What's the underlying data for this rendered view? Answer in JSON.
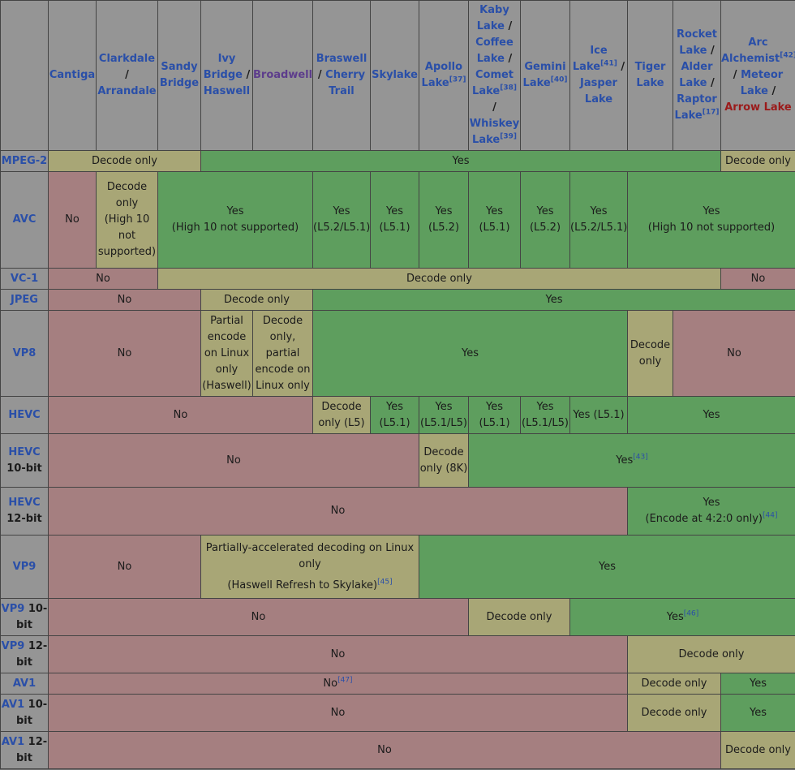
{
  "header": {
    "cantiga": "Cantiga",
    "clarkdale_a": "Clarkdale",
    "clarkdale_slash": "/",
    "clarkdale_b": "Arrandale",
    "sandy": "Sandy Bridge",
    "ivy_a": "Ivy Bridge",
    "ivy_slash": " / ",
    "ivy_b": "Haswell",
    "broadwell": "Broadwell",
    "braswell_a": "Braswell",
    "braswell_slash": " / ",
    "braswell_b": "Cherry Trail",
    "skylake": "Skylake",
    "apollo": "Apollo Lake",
    "apollo_ref": "[37]",
    "kaby_a": "Kaby Lake",
    "kaby_s1": " / ",
    "kaby_b": "Coffee Lake",
    "kaby_s2": " / ",
    "kaby_c": "Comet Lake",
    "kaby_ref": "[38]",
    "kaby_s3": " / ",
    "kaby_d": "Whiskey Lake",
    "kaby_ref2": "[39]",
    "gemini": "Gemini Lake",
    "gemini_ref": "[40]",
    "ice_a": "Ice Lake",
    "ice_ref": "[41]",
    "ice_slash": " / ",
    "ice_b": "Jasper Lake",
    "tiger": "Tiger Lake",
    "rocket_a": "Rocket Lake",
    "rocket_s1": " / ",
    "rocket_b": "Alder Lake",
    "rocket_s2": " / ",
    "rocket_c": "Raptor Lake",
    "rocket_ref": "[17]",
    "arc_a": "Arc Alchemist",
    "arc_ref": "[42]",
    "arc_s1": " / ",
    "arc_b": "Meteor Lake",
    "arc_s2": " / ",
    "arc_c": "Arrow Lake"
  },
  "rows": {
    "mpeg2": {
      "label": "MPEG-2",
      "c1": "Decode only",
      "c2": "Yes",
      "c3": "Decode only"
    },
    "avc": {
      "label": "AVC",
      "c1": "No",
      "c2a": "Decode only",
      "c2b": "(High 10 not supported)",
      "c3a": "Yes",
      "c3b": "(High 10 not supported)",
      "c4a": "Yes",
      "c4b": "(L5.2/L5.1)",
      "c5a": "Yes",
      "c5b": "(L5.1)",
      "c6a": "Yes",
      "c6b": "(L5.2)",
      "c7a": "Yes",
      "c7b": "(L5.1)",
      "c8a": "Yes",
      "c8b": "(L5.2)",
      "c9a": "Yes",
      "c9b": "(L5.2/L5.1)",
      "c10a": "Yes",
      "c10b": "(High 10 not supported)"
    },
    "vc1": {
      "label": "VC-1",
      "c1": "No",
      "c2": "Decode only",
      "c3": "No"
    },
    "jpeg": {
      "label": "JPEG",
      "c1": "No",
      "c2": "Decode only",
      "c3": "Yes"
    },
    "vp8": {
      "label": "VP8",
      "c1": "No",
      "c2": "Partial encode on Linux only (Haswell)",
      "c3": "Decode only, partial encode on Linux only",
      "c4": "Yes",
      "c5": "Decode only",
      "c6": "No"
    },
    "hevc": {
      "label": "HEVC",
      "c1": "No",
      "c2": "Decode only (L5)",
      "c3": "Yes (L5.1)",
      "c4": "Yes (L5.1/L5)",
      "c5": "Yes (L5.1)",
      "c6": "Yes (L5.1/L5)",
      "c7": "Yes (L5.1)",
      "c8": "Yes"
    },
    "hevc10": {
      "label_a": "HEVC",
      "label_b": "10-bit",
      "c1": "No",
      "c2": "Decode only (8K)",
      "c3": "Yes",
      "c3_ref": "[43]"
    },
    "hevc12": {
      "label_a": "HEVC",
      "label_b": "12-bit",
      "c1": "No",
      "c2a": "Yes",
      "c2b": "(Encode at 4:2:0 only)",
      "c2_ref": "[44]"
    },
    "vp9": {
      "label": "VP9",
      "c1": "No",
      "c2a": "Partially-accelerated decoding on Linux only",
      "c2b": "(Haswell Refresh to Skylake)",
      "c2_ref": "[45]",
      "c3": "Yes"
    },
    "vp910": {
      "label_a": "VP9",
      "label_b": " 10-bit",
      "c1": "No",
      "c2": "Decode only",
      "c3": "Yes",
      "c3_ref": "[46]"
    },
    "vp912": {
      "label_a": "VP9",
      "label_b": " 12-bit",
      "c1": "No",
      "c2": "Decode only"
    },
    "av1": {
      "label": "AV1",
      "c1": "No",
      "c1_ref": "[47]",
      "c2": "Decode only",
      "c3": "Yes"
    },
    "av110": {
      "label_a": "AV1",
      "label_b": " 10-bit",
      "c1": "No",
      "c2": "Decode only",
      "c3": "Yes"
    },
    "av112": {
      "label_a": "AV1",
      "label_b": " 12-bit",
      "c1": "No",
      "c2": "Decode only"
    }
  }
}
